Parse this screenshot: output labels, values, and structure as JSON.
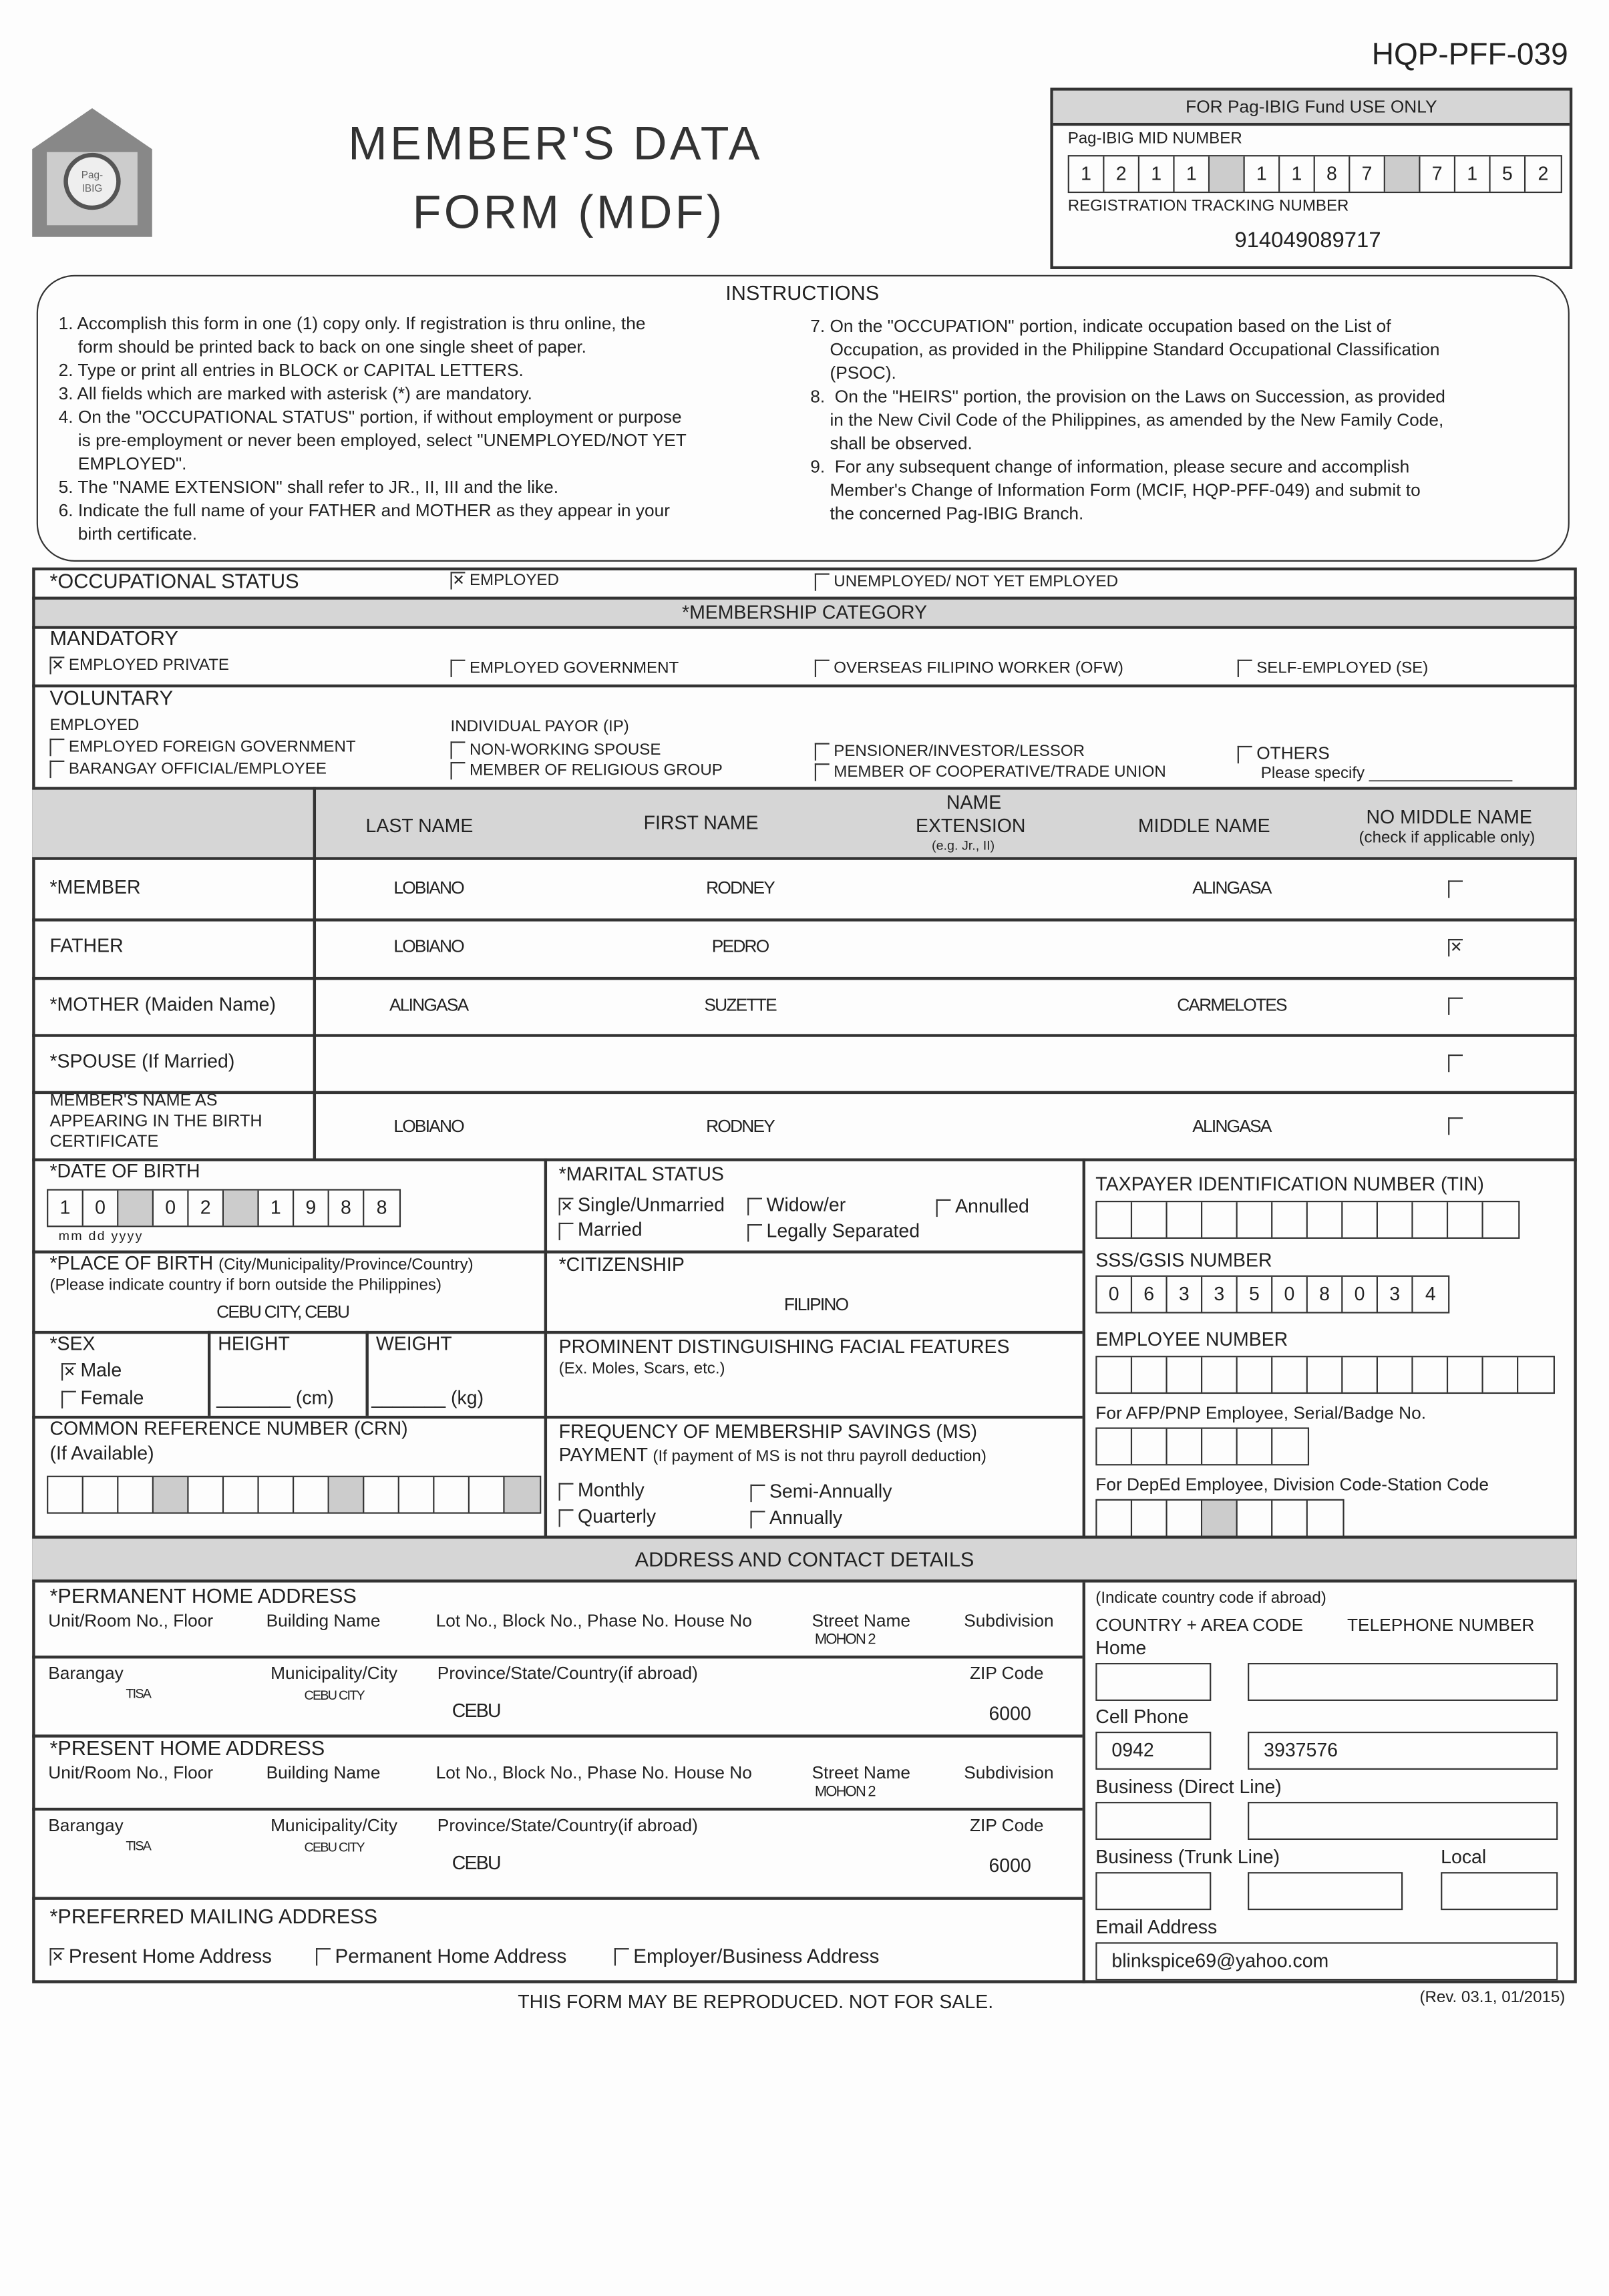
{
  "form_code": "HQP-PFF-039",
  "logo_text": "Pag-IBIG Fund",
  "title_line1": "MEMBER'S DATA",
  "title_line2": "FORM (MDF)",
  "office": {
    "header": "FOR Pag-IBIG Fund USE ONLY",
    "mid_label": "Pag-IBIG MID NUMBER",
    "mid_groups": [
      "1211",
      "1187",
      "7152"
    ],
    "rtn_label": "REGISTRATION TRACKING NUMBER",
    "rtn": "914049089717"
  },
  "instructions": {
    "title": "INSTRUCTIONS",
    "left": [
      "1. Accomplish this form in one (1) copy only. If registration is thru online, the",
      "    form should be printed back to back on one single sheet of paper.",
      "2. Type or print all entries in BLOCK or CAPITAL LETTERS.",
      "3. All fields which are marked with asterisk (*) are mandatory.",
      "4. On the \"OCCUPATIONAL STATUS\" portion, if without employment or purpose",
      "    is pre-employment or never been employed, select \"UNEMPLOYED/NOT YET",
      "    EMPLOYED\".",
      "5. The \"NAME EXTENSION\" shall refer to JR., II, III and the like.",
      "6. Indicate the full name of your FATHER and MOTHER as they appear in your",
      "    birth certificate."
    ],
    "right": [
      "7. On the \"OCCUPATION\" portion, indicate occupation based on the List of",
      "    Occupation, as provided in the Philippine Standard Occupational Classification",
      "    (PSOC).",
      "8.  On the \"HEIRS\" portion, the provision on the Laws on Succession, as provided",
      "    in the New Civil Code of the Philippines, as amended by the New Family Code,",
      "    shall be observed.",
      "9.  For any subsequent change of information, please secure and accomplish",
      "    Member's Change of Information Form (MCIF, HQP-PFF-049) and submit to",
      "    the concerned Pag-IBIG Branch."
    ]
  },
  "occupational_status": {
    "label": "*OCCUPATIONAL STATUS",
    "options": [
      {
        "label": "EMPLOYED",
        "checked": true
      },
      {
        "label": "UNEMPLOYED/ NOT YET EMPLOYED",
        "checked": false
      }
    ]
  },
  "membership": {
    "title": "*MEMBERSHIP CATEGORY",
    "mandatory_label": "MANDATORY",
    "mandatory": [
      {
        "label": "EMPLOYED PRIVATE",
        "checked": true
      },
      {
        "label": "EMPLOYED GOVERNMENT",
        "checked": false
      },
      {
        "label": "OVERSEAS FILIPINO WORKER (OFW)",
        "checked": false
      },
      {
        "label": "SELF-EMPLOYED (SE)",
        "checked": false
      }
    ],
    "voluntary_label": "VOLUNTARY",
    "employed_label": "EMPLOYED",
    "ip_label": "INDIVIDUAL PAYOR (IP)",
    "voluntary": [
      {
        "label": "EMPLOYED FOREIGN GOVERNMENT",
        "checked": false
      },
      {
        "label": "BARANGAY OFFICIAL/EMPLOYEE",
        "checked": false
      },
      {
        "label": "NON-WORKING SPOUSE",
        "checked": false
      },
      {
        "label": "MEMBER OF RELIGIOUS GROUP",
        "checked": false
      },
      {
        "label": "PENSIONER/INVESTOR/LESSOR",
        "checked": false
      },
      {
        "label": "MEMBER OF COOPERATIVE/TRADE UNION",
        "checked": false
      },
      {
        "label": "OTHERS",
        "checked": false
      }
    ],
    "others_specify": "Please specify"
  },
  "names": {
    "headers": [
      "LAST NAME",
      "FIRST NAME",
      "NAME",
      "EXTENSION",
      "(e.g. Jr., II)",
      "MIDDLE NAME",
      "NO MIDDLE NAME",
      "(check if applicable only)"
    ],
    "rows": [
      {
        "label": "*MEMBER",
        "last": "LOBIANO",
        "first": "RODNEY",
        "ext": "",
        "middle": "ALINGASA",
        "no_middle": false
      },
      {
        "label": "FATHER",
        "last": "LOBIANO",
        "first": "PEDRO",
        "ext": "",
        "middle": "",
        "no_middle": true
      },
      {
        "label": "*MOTHER (Maiden Name)",
        "last": "ALINGASA",
        "first": "SUZETTE",
        "ext": "",
        "middle": "CARMELOTES",
        "no_middle": false
      },
      {
        "label": "*SPOUSE (If Married)",
        "last": "",
        "first": "",
        "ext": "",
        "middle": "",
        "no_middle": false
      },
      {
        "label": "MEMBER'S NAME AS APPEARING IN THE BIRTH CERTIFICATE",
        "last": "LOBIANO",
        "first": "RODNEY",
        "ext": "",
        "middle": "ALINGASA",
        "no_middle": false
      }
    ]
  },
  "dob": {
    "label": "*DATE OF BIRTH",
    "mm": "10",
    "dd": "02",
    "yyyy": "1988",
    "format": "mm dd yyyy"
  },
  "marital": {
    "label": "*MARITAL STATUS",
    "options": [
      {
        "label": "Single/Unmarried",
        "checked": true
      },
      {
        "label": "Widow/er",
        "checked": false
      },
      {
        "label": "Annulled",
        "checked": false
      },
      {
        "label": "Married",
        "checked": false
      },
      {
        "label": "Legally Separated",
        "checked": false
      }
    ]
  },
  "place_of_birth": {
    "label": "*PLACE OF BIRTH",
    "sub": "(City/Municipality/Province/Country)",
    "note": "(Please indicate country if born outside the Philippines)",
    "value": "CEBU CITY, CEBU"
  },
  "citizenship": {
    "label": "*CITIZENSHIP",
    "value": "FILIPINO"
  },
  "sex": {
    "label": "*SEX",
    "options": [
      {
        "label": "Male",
        "checked": true
      },
      {
        "label": "Female",
        "checked": false
      }
    ]
  },
  "height": {
    "label": "HEIGHT",
    "unit": "(cm)",
    "value": ""
  },
  "weight": {
    "label": "WEIGHT",
    "unit": "(kg)",
    "value": ""
  },
  "facial": {
    "label": "PROMINENT DISTINGUISHING FACIAL FEATURES",
    "note": "(Ex. Moles, Scars, etc.)"
  },
  "crn": {
    "label": "COMMON REFERENCE NUMBER (CRN)",
    "note": "(If Available)"
  },
  "ms_payment": {
    "label": "FREQUENCY OF MEMBERSHIP SAVINGS (MS)",
    "label2": "PAYMENT",
    "note": "(If payment of MS is not thru payroll deduction)",
    "options": [
      {
        "label": "Monthly",
        "checked": false
      },
      {
        "label": "Semi-Annually",
        "checked": false
      },
      {
        "label": "Quarterly",
        "checked": false
      },
      {
        "label": "Annually",
        "checked": false
      }
    ]
  },
  "tin": {
    "label": "TAXPAYER IDENTIFICATION NUMBER (TIN)"
  },
  "sss": {
    "label": "SSS/GSIS NUMBER",
    "value": "0633508034"
  },
  "employee_no": {
    "label": "EMPLOYEE NUMBER"
  },
  "afp": {
    "label": "For AFP/PNP Employee, Serial/Badge No."
  },
  "deped": {
    "label": "For DepEd Employee, Division Code-Station Code"
  },
  "address": {
    "title": "ADDRESS AND CONTACT DETAILS",
    "line1_labels": [
      "Unit/Room No., Floor",
      "Building Name",
      "Lot No., Block No., Phase No. House No",
      "Street Name",
      "Subdivision"
    ],
    "line2_labels": [
      "Barangay",
      "Municipality/City",
      "Province/State/Country(if abroad)",
      "ZIP Code"
    ],
    "permanent": {
      "label": "*PERMANENT HOME ADDRESS",
      "street": "MOHON 2",
      "barangay": "TISA",
      "city": "CEBU CITY",
      "province": "CEBU",
      "zip": "6000"
    },
    "present": {
      "label": "*PRESENT HOME ADDRESS",
      "street": "MOHON 2",
      "barangay": "TISA",
      "city": "CEBU CITY",
      "province": "CEBU",
      "zip": "6000"
    },
    "preferred": {
      "label": "*PREFERRED MAILING ADDRESS",
      "options": [
        {
          "label": "Present Home Address",
          "checked": true
        },
        {
          "label": "Permanent Home Address",
          "checked": false
        },
        {
          "label": "Employer/Business  Address",
          "checked": false
        }
      ]
    }
  },
  "contact": {
    "note": "(Indicate country code if abroad)",
    "col1": "COUNTRY + AREA CODE",
    "col2": "TELEPHONE NUMBER",
    "home": "Home",
    "cell": "Cell Phone",
    "cell_code": "0942",
    "cell_number": "3937576",
    "business_direct": "Business (Direct Line)",
    "business_trunk": "Business (Trunk Line)",
    "local": "Local",
    "email_label": "Email Address",
    "email": "blinkspice69@yahoo.com"
  },
  "footer": {
    "notice": "THIS FORM MAY BE REPRODUCED. NOT FOR SALE.",
    "rev": "(Rev. 03.1, 01/2015)"
  }
}
